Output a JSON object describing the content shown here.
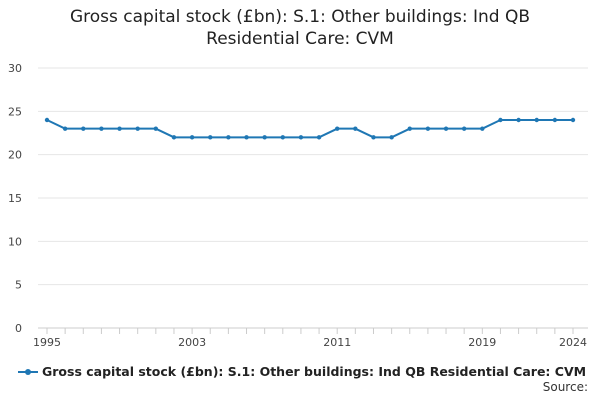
{
  "chart_data": {
    "type": "line",
    "title_lines": [
      "Gross capital stock (£bn): S.1: Other buildings: Ind QB",
      "Residential Care: CVM"
    ],
    "xlabel": "",
    "ylabel": "",
    "x": [
      1995,
      1996,
      1997,
      1998,
      1999,
      2000,
      2001,
      2002,
      2003,
      2004,
      2005,
      2006,
      2007,
      2008,
      2009,
      2010,
      2011,
      2012,
      2013,
      2014,
      2015,
      2016,
      2017,
      2018,
      2019,
      2020,
      2021,
      2022,
      2023,
      2024
    ],
    "x_tick_labels": [
      "1995",
      "2003",
      "2011",
      "2019",
      "2024"
    ],
    "ylim": [
      0,
      30
    ],
    "y_ticks": [
      "0",
      "5",
      "10",
      "15",
      "20",
      "25",
      "30"
    ],
    "grid": "horizontal",
    "legend_position": "bottom",
    "series": [
      {
        "name": "Gross capital stock (£bn): S.1: Other buildings: Ind QB Residential Care: CVM",
        "color": "#1f77b4",
        "values": [
          24,
          23,
          23,
          23,
          23,
          23,
          23,
          22,
          22,
          22,
          22,
          22,
          22,
          22,
          22,
          22,
          23,
          23,
          22,
          22,
          23,
          23,
          23,
          23,
          23,
          24,
          24,
          24,
          24,
          24
        ]
      }
    ]
  },
  "footer": {
    "source_label": "Source:"
  }
}
